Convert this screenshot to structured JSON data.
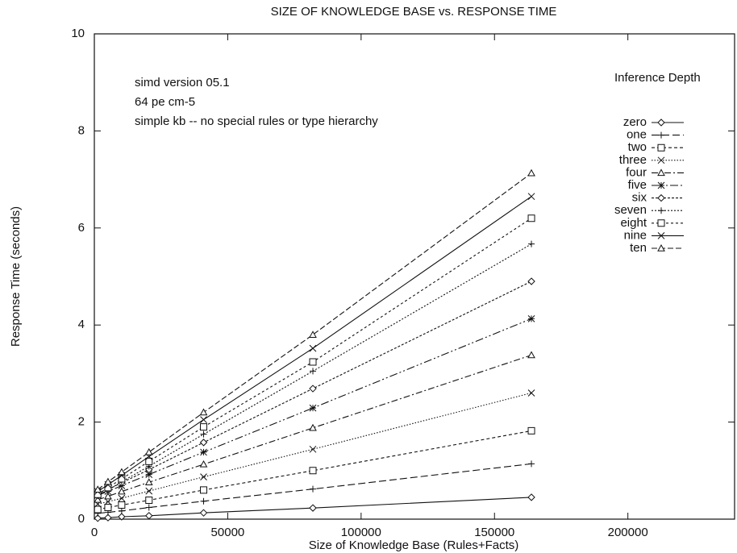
{
  "chart_data": {
    "type": "line",
    "title": "SIZE OF KNOWLEDGE BASE vs. RESPONSE TIME",
    "x_label": "Size of Knowledge Base (Rules+Facts)",
    "y_label": "Response Time (seconds)",
    "annotations": [
      "simd version 05.1",
      "64 pe cm-5",
      "simple kb -- no special rules or type hierarchy"
    ],
    "legend_title": "Inference Depth",
    "legend_position": "right",
    "x": [
      1280,
      5120,
      10240,
      20480,
      40960,
      81920,
      163840
    ],
    "xlim": [
      0,
      240000
    ],
    "xticks": [
      0,
      50000,
      100000,
      150000,
      200000
    ],
    "ylim": [
      0,
      10
    ],
    "yticks": [
      0,
      2,
      4,
      6,
      8,
      10
    ],
    "series": [
      {
        "name": "zero",
        "color": "#111111",
        "marker": "diamond",
        "values": [
          0.02,
          0.03,
          0.05,
          0.07,
          0.13,
          0.23,
          0.45
        ]
      },
      {
        "name": "one",
        "color": "#111111",
        "marker": "plus",
        "values": [
          0.12,
          0.14,
          0.17,
          0.24,
          0.37,
          0.62,
          1.14
        ]
      },
      {
        "name": "two",
        "color": "#111111",
        "marker": "square",
        "values": [
          0.2,
          0.24,
          0.29,
          0.39,
          0.6,
          1.0,
          1.82
        ]
      },
      {
        "name": "three",
        "color": "#111111",
        "marker": "cross",
        "values": [
          0.31,
          0.36,
          0.43,
          0.58,
          0.87,
          1.44,
          2.6
        ]
      },
      {
        "name": "four",
        "color": "#111111",
        "marker": "triangle",
        "values": [
          0.4,
          0.47,
          0.57,
          0.76,
          1.13,
          1.88,
          3.38
        ]
      },
      {
        "name": "five",
        "color": "#111111",
        "marker": "star",
        "values": [
          0.49,
          0.57,
          0.69,
          0.92,
          1.38,
          2.29,
          4.13
        ]
      },
      {
        "name": "six",
        "color": "#111111",
        "marker": "diamond",
        "values": [
          0.5,
          0.61,
          0.75,
          1.02,
          1.58,
          2.69,
          4.9
        ]
      },
      {
        "name": "seven",
        "color": "#111111",
        "marker": "plus",
        "values": [
          0.48,
          0.6,
          0.77,
          1.09,
          1.75,
          3.05,
          5.67
        ]
      },
      {
        "name": "eight",
        "color": "#111111",
        "marker": "square",
        "values": [
          0.51,
          0.65,
          0.83,
          1.19,
          1.9,
          3.24,
          6.2
        ]
      },
      {
        "name": "nine",
        "color": "#111111",
        "marker": "cross",
        "values": [
          0.57,
          0.71,
          0.9,
          1.29,
          2.05,
          3.52,
          6.65
        ]
      },
      {
        "name": "ten",
        "color": "#111111",
        "marker": "triangle",
        "values": [
          0.61,
          0.77,
          0.97,
          1.38,
          2.2,
          3.8,
          7.13
        ]
      }
    ]
  }
}
